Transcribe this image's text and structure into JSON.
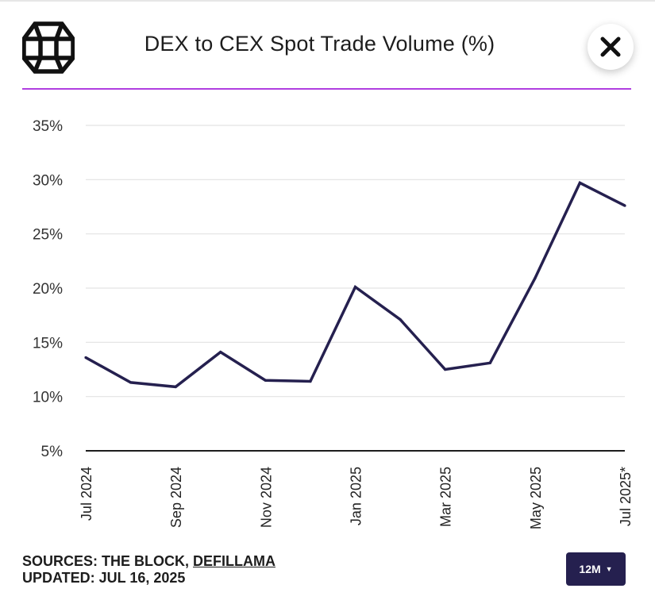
{
  "header": {
    "title": "DEX to CEX Spot Trade Volume (%)",
    "logo_icon": "the-block-cube-logo",
    "close_icon": "close-x-icon"
  },
  "colors": {
    "accent": "#b03fe0",
    "line": "#25204f",
    "button_bg": "#25204f"
  },
  "chart_data": {
    "type": "line",
    "title": "DEX to CEX Spot Trade Volume (%)",
    "xlabel": "",
    "ylabel": "",
    "ylim": [
      5,
      35
    ],
    "y_ticks": [
      "5%",
      "10%",
      "15%",
      "20%",
      "25%",
      "30%",
      "35%"
    ],
    "x_tick_labels": [
      "Jul 2024",
      "Sep 2024",
      "Nov 2024",
      "Jan 2025",
      "Mar 2025",
      "May 2025",
      "Jul 2025*"
    ],
    "x": [
      "Jul 2024",
      "Aug 2024",
      "Sep 2024",
      "Oct 2024",
      "Nov 2024",
      "Dec 2024",
      "Jan 2025",
      "Feb 2025",
      "Mar 2025",
      "Apr 2025",
      "May 2025",
      "Jun 2025",
      "Jul 2025*"
    ],
    "series": [
      {
        "values": [
          13.6,
          11.3,
          10.9,
          14.1,
          11.5,
          11.4,
          20.1,
          17.1,
          12.5,
          13.1,
          20.9,
          29.7,
          27.6
        ]
      }
    ],
    "grid": true
  },
  "footer": {
    "sources_prefix": "SOURCES: THE BLOCK, ",
    "sources_link": "DEFILLAMA",
    "updated": "UPDATED: JUL 16, 2025",
    "range_label": "12M",
    "caret": "▼"
  }
}
